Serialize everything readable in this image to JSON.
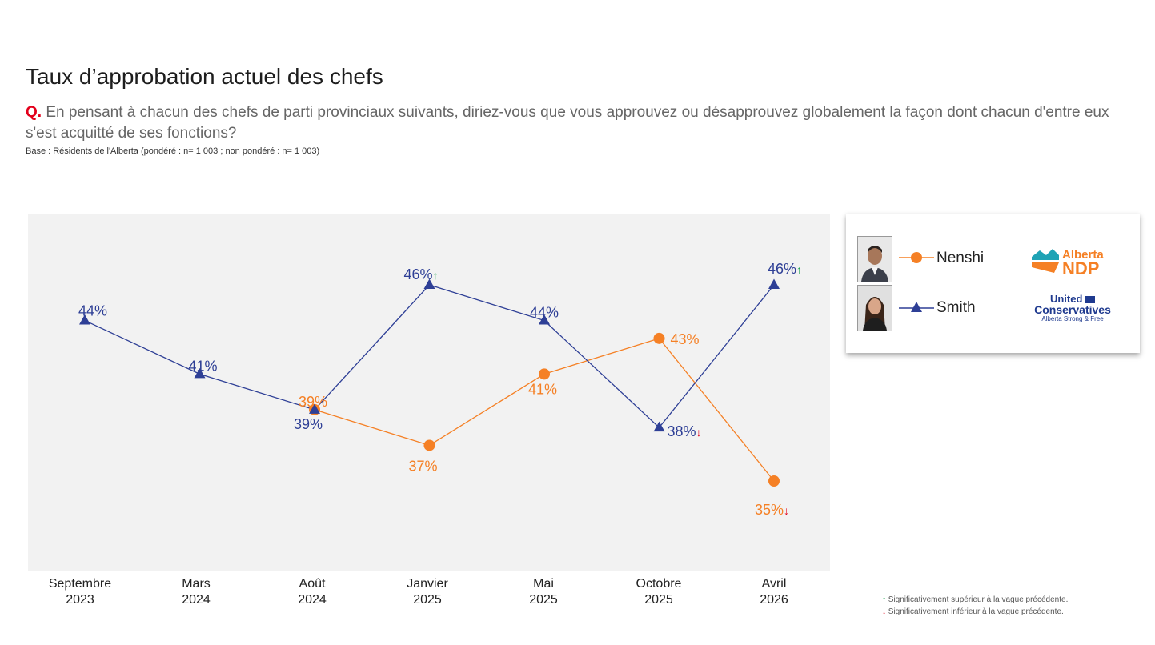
{
  "title": "Taux d’approbation actuel des chefs",
  "question": {
    "marker": "Q.",
    "text": "En pensant à chacun des chefs de parti provinciaux suivants, diriez-vous que vous approuvez ou désapprouvez globalement la façon dont chacun d'entre eux s'est acquitté de ses fonctions?"
  },
  "base": "Base : Résidents de l'Alberta (pondéré : n= 1 003 ; non pondéré : n= 1 003)",
  "colors": {
    "nenshi": "#f58025",
    "smith": "#2e3f96",
    "up": "#1aa24a",
    "down": "#e3001b",
    "plot_bg": "#f2f2f2"
  },
  "chart_data": {
    "type": "line",
    "categories": [
      [
        "Septembre",
        "2023"
      ],
      [
        "Mars",
        "2024"
      ],
      [
        "Août",
        "2024"
      ],
      [
        "Janvier",
        "2025"
      ],
      [
        "Mai",
        "2025"
      ],
      [
        "Octobre",
        "2025"
      ],
      [
        "Avril",
        "2026"
      ]
    ],
    "ylim": [
      30,
      50
    ],
    "grid": false,
    "legend_position": "right",
    "series": [
      {
        "name": "Nenshi",
        "color": "#f58025",
        "marker": "circle",
        "values": [
          null,
          null,
          39,
          37,
          41,
          43,
          35
        ],
        "labels": [
          null,
          null,
          "39%",
          "37%",
          "41%",
          "43%",
          "35%"
        ],
        "significance": [
          null,
          null,
          null,
          null,
          null,
          null,
          "down"
        ]
      },
      {
        "name": "Smith",
        "color": "#2e3f96",
        "marker": "triangle",
        "values": [
          44,
          41,
          39,
          46,
          44,
          38,
          46
        ],
        "labels": [
          "44%",
          "41%",
          "39%",
          "46%",
          "44%",
          "38%",
          "46%"
        ],
        "significance": [
          null,
          null,
          null,
          "up",
          null,
          "down",
          "up"
        ]
      }
    ]
  },
  "legend": {
    "nenshi": "Nenshi",
    "smith": "Smith",
    "ndp_logo": {
      "line1": "Alberta",
      "line2": "NDP"
    },
    "ucp_logo": {
      "line1": "United",
      "line2": "Conservatives",
      "line3": "Alberta Strong & Free"
    }
  },
  "significance_notes": {
    "up_arrow": "↑",
    "down_arrow": "↓",
    "up": "Significativement supérieur à la vague précédente.",
    "down": "Significativement inférieur à la vague précédente."
  }
}
